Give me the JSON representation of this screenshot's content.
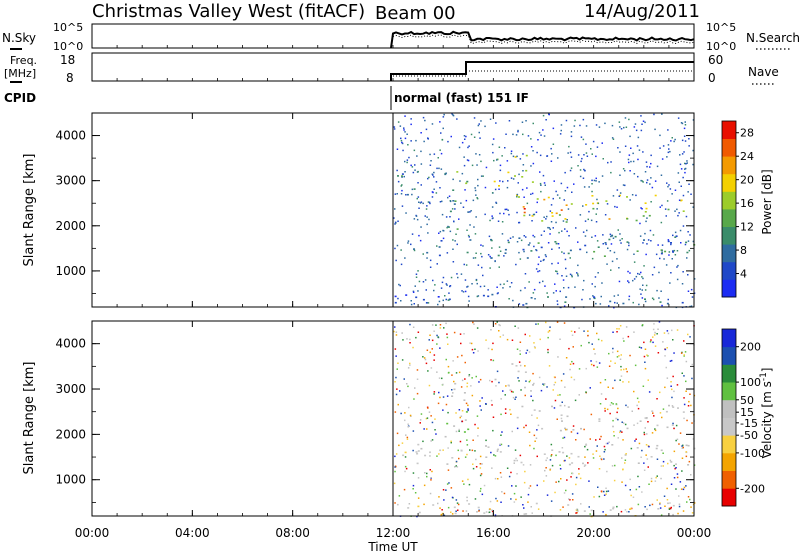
{
  "header": {
    "title": "Christmas Valley West (fitACF)",
    "beam": "Beam 00",
    "date": "14/Aug/2011"
  },
  "strips": {
    "nsky": {
      "label": "N.Sky",
      "left_ticks": [
        "10^5",
        "10^0"
      ],
      "right_ticks": [
        "10^5",
        "10^0"
      ],
      "right_label": "N.Search"
    },
    "freq": {
      "label_line1": "Freq.",
      "label_line2": "[MHz]",
      "left_ticks": [
        "18",
        "8"
      ],
      "right_ticks": [
        "60",
        "0"
      ],
      "right_label": "Nave"
    },
    "cpid": {
      "label": "CPID",
      "text": "normal (fast) 151 IF"
    }
  },
  "xaxis": {
    "ticks": [
      "00:00",
      "04:00",
      "08:00",
      "12:00",
      "16:00",
      "20:00",
      "00:00"
    ],
    "label": "Time UT"
  },
  "colors": {
    "power_scale": [
      "#1c2cf2",
      "#1f48c8",
      "#2f6ca0",
      "#3a8c6a",
      "#58a84a",
      "#9ccc2a",
      "#f4d000",
      "#f49a00",
      "#f05a00",
      "#e81000"
    ],
    "velocity_scale": [
      "#e80000",
      "#f06000",
      "#f4a400",
      "#f8d040",
      "#c8c8c8",
      "#c0c0c0",
      "#60c040",
      "#2a8c3a",
      "#1c50b0",
      "#1828d8"
    ]
  },
  "chart_data": [
    {
      "type": "heatmap",
      "name": "power",
      "ylabel": "Slant Range [km]",
      "yticks": [
        "1000",
        "2000",
        "3000",
        "4000"
      ],
      "ylim": [
        200,
        4500
      ],
      "xlim_hours": [
        0,
        24
      ],
      "colorbar": {
        "label": "Power [dB]",
        "ticks": [
          "4",
          "8",
          "12",
          "16",
          "20",
          "24",
          "28"
        ],
        "range": [
          0,
          30
        ]
      },
      "data_start_hour": 12,
      "regions": [
        {
          "name": "band-lower",
          "t_range": [
            12.3,
            24
          ],
          "range_km": [
            1300,
            1800
          ],
          "value": 9
        },
        {
          "name": "band-main",
          "t_range": [
            16.6,
            23.6
          ],
          "range_km": [
            2100,
            2700
          ],
          "value": 18
        },
        {
          "name": "band-core",
          "t_range": [
            17.0,
            19.0
          ],
          "range_km": [
            2200,
            2600
          ],
          "value": 23
        },
        {
          "name": "patch-early",
          "t_range": [
            12.1,
            13.2
          ],
          "range_km": [
            2700,
            3300
          ],
          "value": 10
        },
        {
          "name": "patch-mid",
          "t_range": [
            14.0,
            15.0
          ],
          "range_km": [
            1900,
            3300
          ],
          "value": 12
        },
        {
          "name": "arc-upper",
          "t_range": [
            15.9,
            17.6
          ],
          "range_km": [
            2900,
            3600
          ],
          "value": 16
        },
        {
          "name": "near-range",
          "t_range": [
            12,
            24
          ],
          "range_km": [
            200,
            500
          ],
          "value": 6
        }
      ]
    },
    {
      "type": "heatmap",
      "name": "velocity",
      "ylabel": "Slant Range [km]",
      "yticks": [
        "1000",
        "2000",
        "3000",
        "4000"
      ],
      "ylim": [
        200,
        4500
      ],
      "xlim_hours": [
        0,
        24
      ],
      "colorbar": {
        "label": "Velocity [m s^-1]",
        "ticks": [
          "200",
          "100",
          "50",
          "15",
          "-15",
          "-50",
          "-100",
          "-200"
        ],
        "range": [
          -250,
          250
        ]
      },
      "data_start_hour": 12,
      "regions": [
        {
          "name": "band-main",
          "t_range": [
            16.6,
            23.6
          ],
          "range_km": [
            2100,
            2700
          ],
          "value": 0
        },
        {
          "name": "arc-upper",
          "t_range": [
            15.9,
            17.6
          ],
          "range_km": [
            2900,
            3600
          ],
          "value": 5
        },
        {
          "name": "band-lower",
          "t_range": [
            12.3,
            24
          ],
          "range_km": [
            1300,
            1800
          ],
          "value": -5
        },
        {
          "name": "patch-early",
          "t_range": [
            12.4,
            13.0
          ],
          "range_km": [
            1500,
            1800
          ],
          "value": -90
        },
        {
          "name": "patch-mid",
          "t_range": [
            14.0,
            15.0
          ],
          "range_km": [
            1900,
            3300
          ],
          "value": 40
        },
        {
          "name": "near-range",
          "t_range": [
            12,
            24
          ],
          "range_km": [
            200,
            500
          ],
          "value": -40
        }
      ]
    }
  ]
}
